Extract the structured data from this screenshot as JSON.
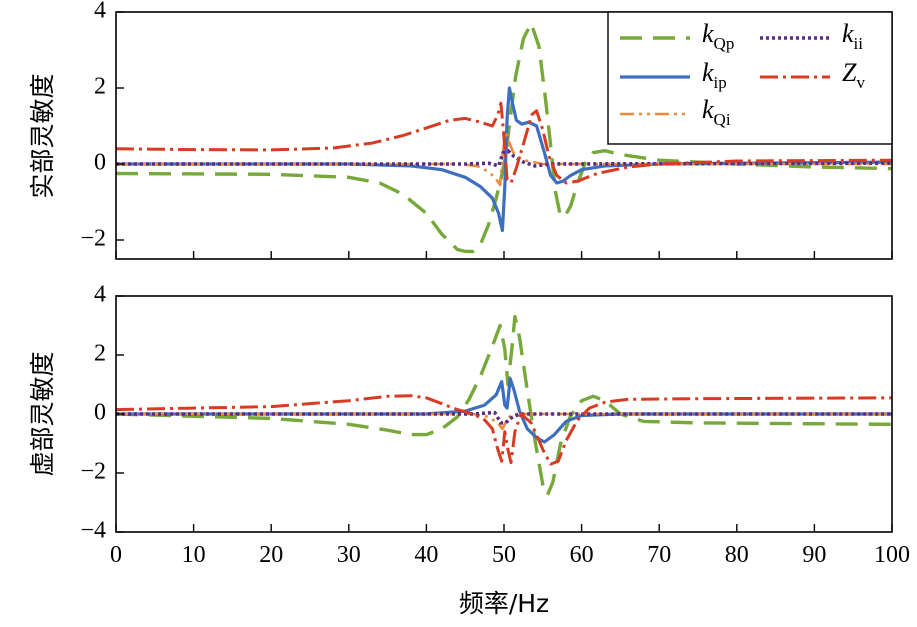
{
  "chart_data": [
    {
      "type": "line",
      "ylabel": "实部灵敏度",
      "xlabel": "",
      "xlim": [
        0,
        100
      ],
      "ylim": [
        -2.5,
        4
      ],
      "yticks": [
        -2,
        0,
        2,
        4
      ],
      "ytick_labels": [
        "−2",
        "0",
        "2",
        "4"
      ],
      "xticks": [
        0,
        10,
        20,
        30,
        40,
        50,
        60,
        70,
        80,
        90,
        100
      ],
      "legend": "top-right",
      "series": [
        {
          "name": "kQp",
          "base": "k",
          "sub": "Qp",
          "color": "#77a83a",
          "dash": "22 11",
          "width": 3.4,
          "points": [
            [
              0,
              -0.25
            ],
            [
              20,
              -0.27
            ],
            [
              30,
              -0.35
            ],
            [
              34,
              -0.5
            ],
            [
              37,
              -0.8
            ],
            [
              40,
              -1.3
            ],
            [
              42,
              -1.85
            ],
            [
              44,
              -2.25
            ],
            [
              45,
              -2.3
            ],
            [
              46,
              -2.3
            ],
            [
              47,
              -2.1
            ],
            [
              48,
              -1.6
            ],
            [
              49,
              -0.9
            ],
            [
              49.6,
              -0.4
            ],
            [
              50.2,
              0.2
            ],
            [
              50.8,
              1.2
            ],
            [
              51.5,
              2.3
            ],
            [
              52.5,
              3.3
            ],
            [
              53.5,
              3.7
            ],
            [
              54.5,
              3.1
            ],
            [
              55.3,
              1.8
            ],
            [
              56,
              0.5
            ],
            [
              56.6,
              -0.7
            ],
            [
              57.2,
              -1.3
            ],
            [
              57.8,
              -1.4
            ],
            [
              58.6,
              -1.1
            ],
            [
              59.5,
              -0.5
            ],
            [
              60.5,
              0.05
            ],
            [
              61.5,
              0.3
            ],
            [
              63,
              0.35
            ],
            [
              65,
              0.25
            ],
            [
              70,
              0.1
            ],
            [
              80,
              0.0
            ],
            [
              90,
              -0.08
            ],
            [
              100,
              -0.12
            ]
          ]
        },
        {
          "name": "kip",
          "base": "k",
          "sub": "ip",
          "color": "#3d6fc0",
          "dash": "",
          "width": 3.2,
          "points": [
            [
              0,
              0.0
            ],
            [
              30,
              0.0
            ],
            [
              38,
              -0.05
            ],
            [
              42,
              -0.15
            ],
            [
              45,
              -0.35
            ],
            [
              47,
              -0.6
            ],
            [
              48.5,
              -0.9
            ],
            [
              49.3,
              -1.3
            ],
            [
              49.8,
              -1.75
            ],
            [
              50.1,
              -0.6
            ],
            [
              50.4,
              1.2
            ],
            [
              50.7,
              2.0
            ],
            [
              51.1,
              1.6
            ],
            [
              51.6,
              1.15
            ],
            [
              52.3,
              1.05
            ],
            [
              53.2,
              1.1
            ],
            [
              54.2,
              1.0
            ],
            [
              55.2,
              0.3
            ],
            [
              56.0,
              -0.3
            ],
            [
              56.8,
              -0.5
            ],
            [
              57.6,
              -0.45
            ],
            [
              58.6,
              -0.3
            ],
            [
              60,
              -0.15
            ],
            [
              63,
              -0.05
            ],
            [
              70,
              0.0
            ],
            [
              100,
              0.05
            ]
          ]
        },
        {
          "name": "kQi",
          "base": "k",
          "sub": "Qi",
          "color": "#e88c3a",
          "dash": "14 5 3 5 3 5",
          "width": 2.6,
          "points": [
            [
              0,
              0.0
            ],
            [
              44,
              0.0
            ],
            [
              46.5,
              -0.05
            ],
            [
              48,
              -0.2
            ],
            [
              49,
              -0.4
            ],
            [
              49.5,
              -0.55
            ],
            [
              49.8,
              0.2
            ],
            [
              50.2,
              0.85
            ],
            [
              50.6,
              0.6
            ],
            [
              51.2,
              0.3
            ],
            [
              52.5,
              0.1
            ],
            [
              55,
              0.0
            ],
            [
              100,
              0.0
            ]
          ]
        },
        {
          "name": "kii",
          "base": "k",
          "sub": "ii",
          "color": "#5b2d82",
          "dash": "3 3",
          "width": 3.6,
          "points": [
            [
              0,
              0.0
            ],
            [
              45,
              0.0
            ],
            [
              48,
              0.02
            ],
            [
              49.3,
              -0.05
            ],
            [
              49.9,
              0.3
            ],
            [
              50.5,
              0.35
            ],
            [
              51.3,
              0.2
            ],
            [
              52.5,
              0.05
            ],
            [
              54,
              -0.05
            ],
            [
              56,
              0.0
            ],
            [
              100,
              0.02
            ]
          ]
        },
        {
          "name": "Zv",
          "base": "Z",
          "sub": "v",
          "color": "#d93a22",
          "dash": "18 5 3 5",
          "width": 3.0,
          "points": [
            [
              0,
              0.4
            ],
            [
              10,
              0.38
            ],
            [
              20,
              0.37
            ],
            [
              28,
              0.42
            ],
            [
              33,
              0.55
            ],
            [
              37,
              0.75
            ],
            [
              40,
              0.95
            ],
            [
              43,
              1.15
            ],
            [
              45,
              1.2
            ],
            [
              47,
              1.1
            ],
            [
              48.5,
              1.0
            ],
            [
              49.2,
              1.3
            ],
            [
              49.6,
              1.6
            ],
            [
              50.0,
              0.7
            ],
            [
              50.4,
              -0.4
            ],
            [
              50.9,
              -0.5
            ],
            [
              51.6,
              -0.1
            ],
            [
              52.6,
              0.6
            ],
            [
              53.6,
              1.3
            ],
            [
              54.2,
              1.4
            ],
            [
              55,
              0.9
            ],
            [
              55.8,
              0.2
            ],
            [
              56.8,
              -0.3
            ],
            [
              58,
              -0.5
            ],
            [
              59.5,
              -0.45
            ],
            [
              62,
              -0.25
            ],
            [
              66,
              -0.08
            ],
            [
              70,
              0.0
            ],
            [
              80,
              0.08
            ],
            [
              100,
              0.1
            ]
          ]
        }
      ]
    },
    {
      "type": "line",
      "ylabel": "虚部灵敏度",
      "xlabel": "频率/Hz",
      "xlim": [
        0,
        100
      ],
      "ylim": [
        -4,
        4
      ],
      "yticks": [
        -4,
        -2,
        0,
        2,
        4
      ],
      "ytick_labels": [
        "−4",
        "−2",
        "0",
        "2",
        "4"
      ],
      "xticks": [
        0,
        10,
        20,
        30,
        40,
        50,
        60,
        70,
        80,
        90,
        100
      ],
      "xtick_labels": [
        "0",
        "10",
        "20",
        "30",
        "40",
        "50",
        "60",
        "70",
        "80",
        "90",
        "100"
      ],
      "series": [
        {
          "name": "kQp",
          "color": "#77a83a",
          "dash": "22 11",
          "width": 3.4,
          "points": [
            [
              0,
              0.0
            ],
            [
              20,
              -0.15
            ],
            [
              30,
              -0.35
            ],
            [
              35,
              -0.55
            ],
            [
              38,
              -0.7
            ],
            [
              40,
              -0.7
            ],
            [
              42,
              -0.5
            ],
            [
              44,
              -0.1
            ],
            [
              45.5,
              0.5
            ],
            [
              47,
              1.3
            ],
            [
              48.5,
              2.3
            ],
            [
              49.5,
              3.0
            ],
            [
              50.1,
              2.2
            ],
            [
              50.5,
              1.0
            ],
            [
              51,
              2.2
            ],
            [
              51.4,
              3.3
            ],
            [
              52,
              2.6
            ],
            [
              53,
              0.8
            ],
            [
              54,
              -0.9
            ],
            [
              55,
              -2.4
            ],
            [
              55.6,
              -2.75
            ],
            [
              56.3,
              -2.3
            ],
            [
              57.3,
              -1.0
            ],
            [
              58.5,
              -0.1
            ],
            [
              60,
              0.45
            ],
            [
              61.5,
              0.6
            ],
            [
              63,
              0.45
            ],
            [
              65,
              0.0
            ],
            [
              68,
              -0.25
            ],
            [
              75,
              -0.3
            ],
            [
              100,
              -0.35
            ]
          ]
        },
        {
          "name": "kip",
          "color": "#3d6fc0",
          "dash": "",
          "width": 3.2,
          "points": [
            [
              0,
              0.0
            ],
            [
              40,
              0.0
            ],
            [
              45,
              0.1
            ],
            [
              47.5,
              0.3
            ],
            [
              49,
              0.65
            ],
            [
              49.7,
              1.1
            ],
            [
              50.1,
              0.3
            ],
            [
              50.4,
              0.2
            ],
            [
              50.8,
              1.2
            ],
            [
              51.3,
              0.8
            ],
            [
              52,
              0.1
            ],
            [
              53,
              -0.5
            ],
            [
              54.2,
              -0.8
            ],
            [
              55.2,
              -0.95
            ],
            [
              56.5,
              -0.7
            ],
            [
              58,
              -0.25
            ],
            [
              60,
              -0.05
            ],
            [
              65,
              0.0
            ],
            [
              100,
              0.0
            ]
          ]
        },
        {
          "name": "kQi",
          "color": "#e88c3a",
          "dash": "14 5 3 5 3 5",
          "width": 2.6,
          "points": [
            [
              0,
              0.0
            ],
            [
              46,
              0.0
            ],
            [
              48,
              -0.1
            ],
            [
              49.2,
              -0.3
            ],
            [
              49.8,
              -0.5
            ],
            [
              50.3,
              -0.25
            ],
            [
              51,
              0.0
            ],
            [
              53,
              0.0
            ],
            [
              100,
              0.0
            ]
          ]
        },
        {
          "name": "kii",
          "color": "#5b2d82",
          "dash": "3 3",
          "width": 3.6,
          "points": [
            [
              0,
              0.0
            ],
            [
              46,
              0.0
            ],
            [
              48.8,
              0.05
            ],
            [
              49.6,
              -0.3
            ],
            [
              50.2,
              -0.3
            ],
            [
              50.8,
              -0.15
            ],
            [
              52,
              0.0
            ],
            [
              100,
              0.0
            ]
          ]
        },
        {
          "name": "Zv",
          "color": "#d93a22",
          "dash": "18 5 3 5",
          "width": 3.0,
          "points": [
            [
              0,
              0.15
            ],
            [
              10,
              0.2
            ],
            [
              20,
              0.25
            ],
            [
              30,
              0.45
            ],
            [
              35,
              0.6
            ],
            [
              38,
              0.62
            ],
            [
              40,
              0.55
            ],
            [
              42,
              0.35
            ],
            [
              44,
              0.15
            ],
            [
              46,
              0.0
            ],
            [
              47.5,
              -0.2
            ],
            [
              48.5,
              -0.5
            ],
            [
              49.2,
              -1.2
            ],
            [
              49.7,
              -1.6
            ],
            [
              50.1,
              -0.6
            ],
            [
              50.5,
              -1.2
            ],
            [
              50.9,
              -1.65
            ],
            [
              51.4,
              -0.6
            ],
            [
              52.2,
              0.0
            ],
            [
              53.5,
              -0.3
            ],
            [
              55,
              -1.2
            ],
            [
              56,
              -1.7
            ],
            [
              57,
              -1.6
            ],
            [
              58,
              -0.9
            ],
            [
              59.5,
              -0.2
            ],
            [
              61,
              0.2
            ],
            [
              63,
              0.4
            ],
            [
              66,
              0.5
            ],
            [
              75,
              0.52
            ],
            [
              100,
              0.55
            ]
          ]
        }
      ]
    }
  ]
}
